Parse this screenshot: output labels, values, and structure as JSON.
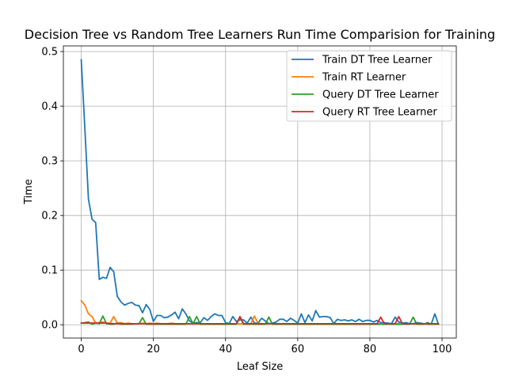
{
  "chart_data": {
    "type": "line",
    "title": "Decision Tree vs Random Tree Learners Run Time Comparision for Training",
    "xlabel": "Leaf Size",
    "ylabel": "Time",
    "xlim": [
      -4.95,
      103.95
    ],
    "ylim": [
      -0.0243,
      0.5103
    ],
    "xticks": [
      0,
      20,
      40,
      60,
      80,
      100
    ],
    "xtick_labels": [
      "0",
      "20",
      "40",
      "60",
      "80",
      "100"
    ],
    "yticks": [
      0.0,
      0.1,
      0.2,
      0.3,
      0.4,
      0.5
    ],
    "ytick_labels": [
      "0.0",
      "0.1",
      "0.2",
      "0.3",
      "0.4",
      "0.5"
    ],
    "grid": true,
    "legend_position": "top-right",
    "x": [
      0,
      1,
      2,
      3,
      4,
      5,
      6,
      7,
      8,
      9,
      10,
      11,
      12,
      13,
      14,
      15,
      16,
      17,
      18,
      19,
      20,
      21,
      22,
      23,
      24,
      25,
      26,
      27,
      28,
      29,
      30,
      31,
      32,
      33,
      34,
      35,
      36,
      37,
      38,
      39,
      40,
      41,
      42,
      43,
      44,
      45,
      46,
      47,
      48,
      49,
      50,
      51,
      52,
      53,
      54,
      55,
      56,
      57,
      58,
      59,
      60,
      61,
      62,
      63,
      64,
      65,
      66,
      67,
      68,
      69,
      70,
      71,
      72,
      73,
      74,
      75,
      76,
      77,
      78,
      79,
      80,
      81,
      82,
      83,
      84,
      85,
      86,
      87,
      88,
      89,
      90,
      91,
      92,
      93,
      94,
      95,
      96,
      97,
      98,
      99
    ],
    "series": [
      {
        "name": "Train DT Tree Learner",
        "color": "#1f77b4",
        "values": [
          0.485,
          0.36,
          0.23,
          0.193,
          0.187,
          0.083,
          0.087,
          0.085,
          0.105,
          0.097,
          0.052,
          0.042,
          0.036,
          0.039,
          0.041,
          0.036,
          0.035,
          0.022,
          0.037,
          0.028,
          0.006,
          0.017,
          0.017,
          0.013,
          0.014,
          0.018,
          0.023,
          0.011,
          0.029,
          0.02,
          0.007,
          0.003,
          0.004,
          0.004,
          0.013,
          0.008,
          0.015,
          0.02,
          0.017,
          0.017,
          0.004,
          0.002,
          0.015,
          0.006,
          0.009,
          0.009,
          0.003,
          0.014,
          0.003,
          0.003,
          0.012,
          0.007,
          0.002,
          0.003,
          0.005,
          0.01,
          0.01,
          0.006,
          0.012,
          0.008,
          0.003,
          0.02,
          0.004,
          0.018,
          0.007,
          0.026,
          0.014,
          0.015,
          0.015,
          0.013,
          0.002,
          0.01,
          0.008,
          0.009,
          0.007,
          0.009,
          0.006,
          0.01,
          0.006,
          0.008,
          0.008,
          0.005,
          0.008,
          0.004,
          0.004,
          0.003,
          0.002,
          0.014,
          0.005,
          0.003,
          0.004,
          0.002,
          0.002,
          0.004,
          0.003,
          0.002,
          0.001,
          0.001,
          0.02,
          0.001
        ]
      },
      {
        "name": "Train RT Learner",
        "color": "#ff7f0e",
        "values": [
          0.044,
          0.036,
          0.02,
          0.015,
          0.003,
          0.004,
          0.005,
          0.003,
          0.003,
          0.015,
          0.003,
          0.004,
          0.002,
          0.003,
          0.002,
          0.002,
          0.002,
          0.003,
          0.002,
          0.003,
          0.002,
          0.003,
          0.002,
          0.002,
          0.002,
          0.003,
          0.002,
          0.002,
          0.002,
          0.002,
          0.002,
          0.002,
          0.002,
          0.002,
          0.002,
          0.002,
          0.002,
          0.002,
          0.002,
          0.002,
          0.002,
          0.002,
          0.002,
          0.002,
          0.002,
          0.002,
          0.002,
          0.002,
          0.016,
          0.003,
          0.002,
          0.002,
          0.002,
          0.002,
          0.002,
          0.002,
          0.002,
          0.002,
          0.002,
          0.002,
          0.002,
          0.002,
          0.002,
          0.002,
          0.002,
          0.002,
          0.002,
          0.002,
          0.002,
          0.002,
          0.002,
          0.002,
          0.002,
          0.002,
          0.002,
          0.002,
          0.002,
          0.002,
          0.002,
          0.002,
          0.002,
          0.002,
          0.002,
          0.002,
          0.002,
          0.002,
          0.002,
          0.002,
          0.002,
          0.002,
          0.002,
          0.002,
          0.002,
          0.002,
          0.002,
          0.002,
          0.002,
          0.002,
          0.002,
          0.002
        ]
      },
      {
        "name": "Query DT Tree Learner",
        "color": "#2ca02c",
        "values": [
          0.003,
          0.004,
          0.005,
          0.001,
          0.003,
          0.002,
          0.016,
          0.002,
          0.001,
          0.001,
          0.003,
          0.001,
          0.001,
          0.001,
          0.001,
          0.002,
          0.002,
          0.013,
          0.001,
          0.001,
          0.001,
          0.001,
          0.001,
          0.001,
          0.001,
          0.001,
          0.001,
          0.001,
          0.001,
          0.001,
          0.015,
          0.002,
          0.015,
          0.001,
          0.001,
          0.001,
          0.001,
          0.001,
          0.001,
          0.001,
          0.001,
          0.001,
          0.001,
          0.001,
          0.013,
          0.001,
          0.001,
          0.001,
          0.001,
          0.001,
          0.001,
          0.001,
          0.014,
          0.001,
          0.001,
          0.001,
          0.001,
          0.001,
          0.001,
          0.001,
          0.001,
          0.001,
          0.001,
          0.001,
          0.001,
          0.001,
          0.001,
          0.001,
          0.001,
          0.001,
          0.001,
          0.001,
          0.001,
          0.001,
          0.001,
          0.001,
          0.001,
          0.001,
          0.001,
          0.001,
          0.001,
          0.001,
          0.001,
          0.001,
          0.001,
          0.001,
          0.001,
          0.001,
          0.001,
          0.001,
          0.001,
          0.001,
          0.014,
          0.001,
          0.001,
          0.001,
          0.004,
          0.001,
          0.001,
          0.001
        ]
      },
      {
        "name": "Query RT Tree Learner",
        "color": "#d62728",
        "values": [
          0.003,
          0.003,
          0.003,
          0.003,
          0.003,
          0.003,
          0.003,
          0.003,
          0.002,
          0.002,
          0.002,
          0.002,
          0.002,
          0.002,
          0.002,
          0.002,
          0.002,
          0.002,
          0.002,
          0.002,
          0.002,
          0.002,
          0.002,
          0.002,
          0.002,
          0.002,
          0.002,
          0.002,
          0.002,
          0.002,
          0.002,
          0.002,
          0.002,
          0.002,
          0.002,
          0.002,
          0.002,
          0.002,
          0.002,
          0.002,
          0.002,
          0.002,
          0.002,
          0.002,
          0.015,
          0.002,
          0.002,
          0.002,
          0.002,
          0.002,
          0.002,
          0.002,
          0.002,
          0.002,
          0.002,
          0.002,
          0.002,
          0.002,
          0.002,
          0.002,
          0.002,
          0.002,
          0.002,
          0.002,
          0.002,
          0.002,
          0.002,
          0.002,
          0.002,
          0.002,
          0.002,
          0.002,
          0.002,
          0.002,
          0.002,
          0.002,
          0.002,
          0.002,
          0.002,
          0.002,
          0.002,
          0.002,
          0.002,
          0.014,
          0.002,
          0.002,
          0.002,
          0.002,
          0.015,
          0.002,
          0.002,
          0.002,
          0.002,
          0.002,
          0.002,
          0.002,
          0.002,
          0.002,
          0.002,
          0.002
        ]
      }
    ]
  }
}
